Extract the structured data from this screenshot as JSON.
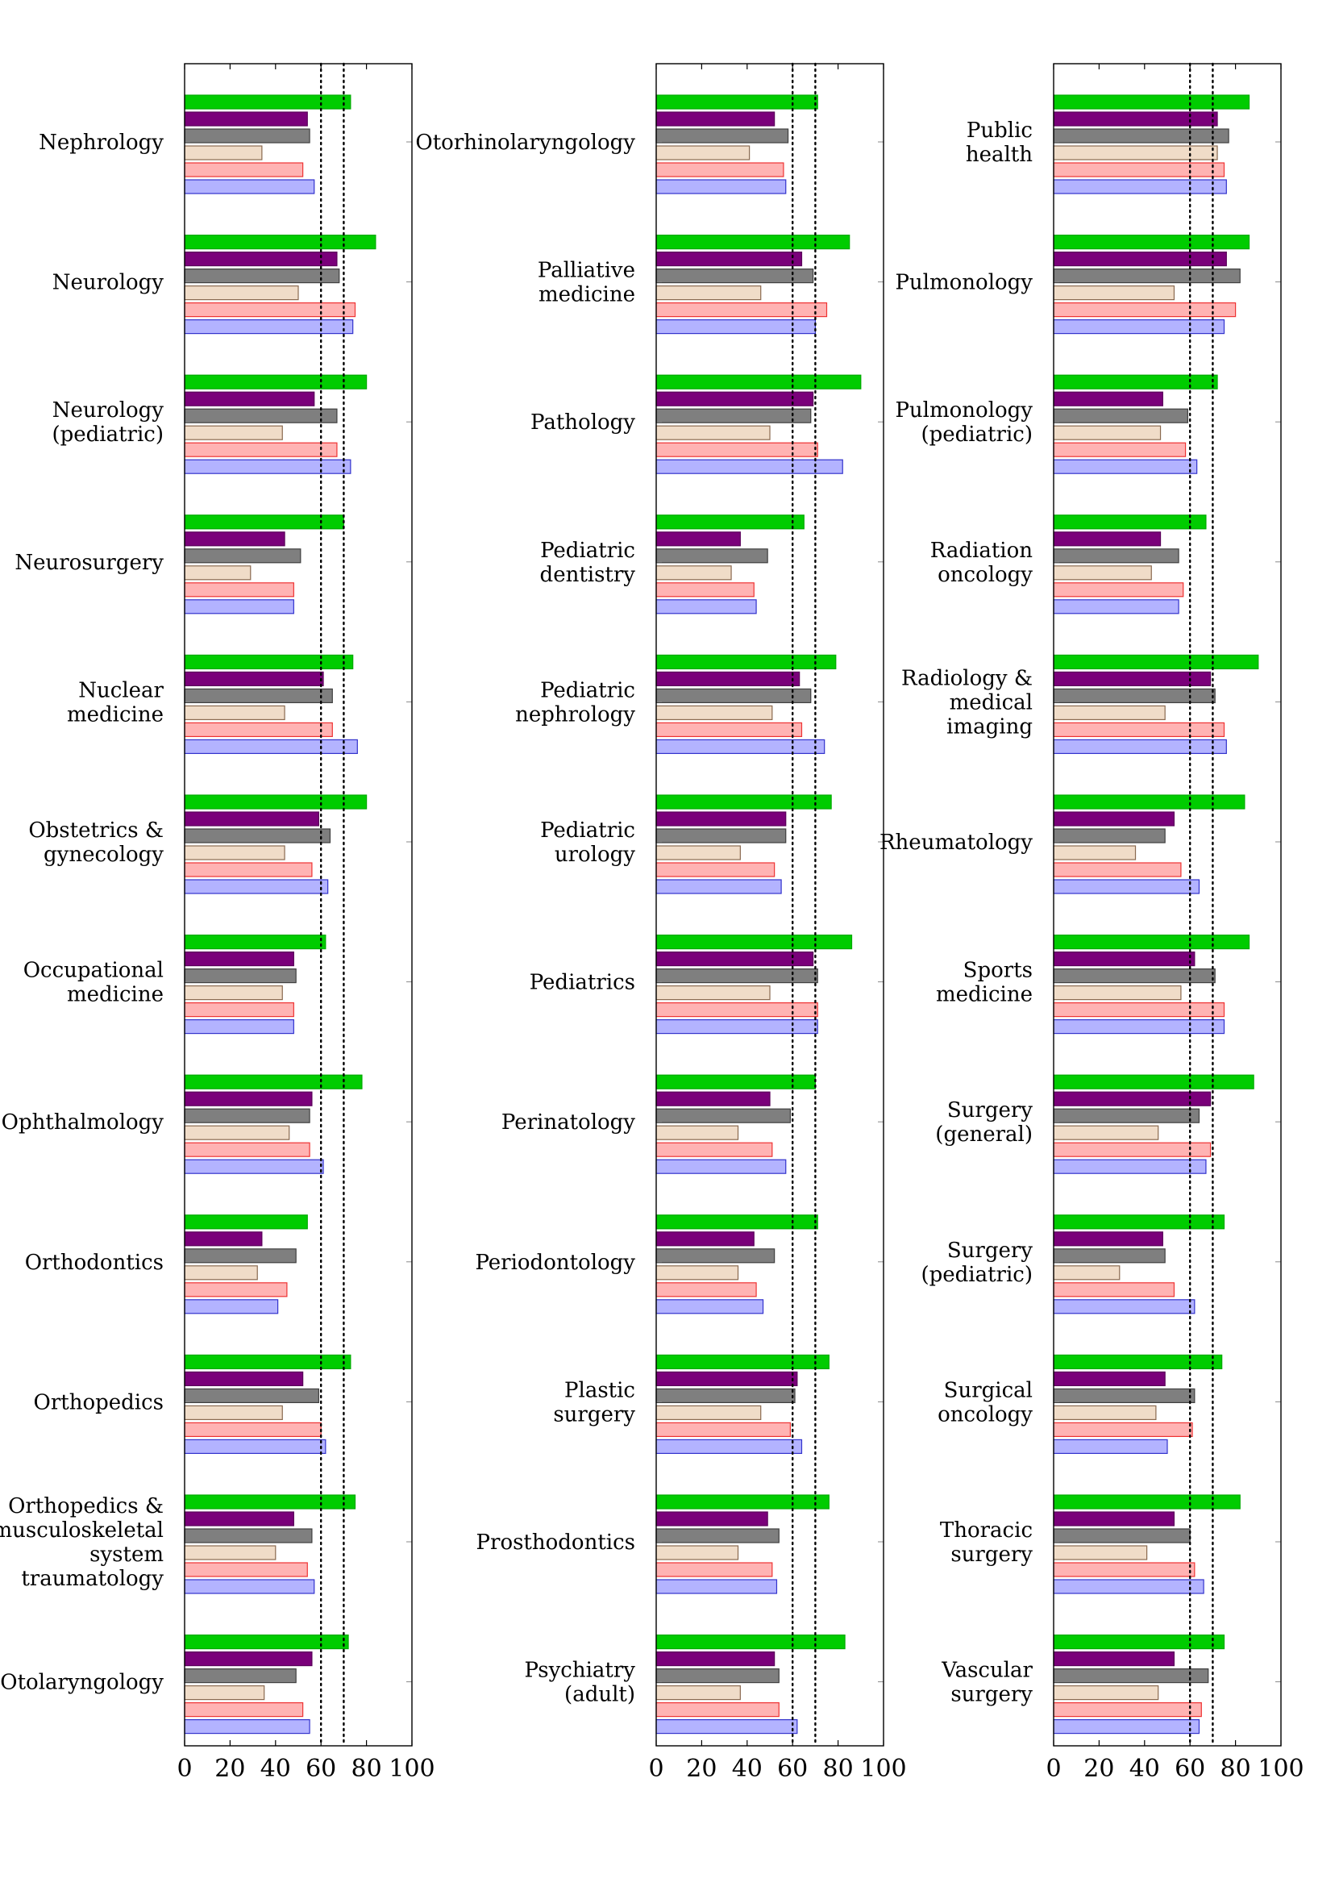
{
  "chart_data": [
    {
      "type": "bar",
      "orientation": "horizontal",
      "xlim": [
        0,
        100
      ],
      "xticks": [
        "0",
        "20",
        "40",
        "60",
        "80",
        "100"
      ],
      "reference_lines": [
        60,
        70
      ],
      "grid": false,
      "categories": [
        [
          "Nephrology"
        ],
        [
          "Neurology"
        ],
        [
          "Neurology",
          "(pediatric)"
        ],
        [
          "Neurosurgery"
        ],
        [
          "Nuclear",
          "medicine"
        ],
        [
          "Obstetrics &",
          "gynecology"
        ],
        [
          "Occupational",
          "medicine"
        ],
        [
          "Ophthalmology"
        ],
        [
          "Orthodontics"
        ],
        [
          "Orthopedics"
        ],
        [
          "Orthopedics &",
          "musculoskeletal",
          "system",
          "traumatology"
        ],
        [
          "Otolaryngology"
        ]
      ],
      "series": [
        {
          "color": "#00cc00",
          "values": [
            73,
            84,
            80,
            70,
            74,
            80,
            62,
            78,
            54,
            73,
            75,
            72
          ]
        },
        {
          "color": "#7a007a",
          "values": [
            54,
            67,
            57,
            44,
            61,
            59,
            48,
            56,
            34,
            52,
            48,
            56
          ]
        },
        {
          "color": "#7f7f7f",
          "values": [
            55,
            68,
            67,
            51,
            65,
            64,
            49,
            55,
            49,
            59,
            56,
            49
          ]
        },
        {
          "color": "#f0dcc8",
          "values": [
            34,
            50,
            43,
            29,
            44,
            44,
            43,
            46,
            32,
            43,
            40,
            35
          ]
        },
        {
          "color": "#ffb3b3",
          "values": [
            52,
            75,
            67,
            48,
            65,
            56,
            48,
            55,
            45,
            60,
            54,
            52
          ]
        },
        {
          "color": "#b3b3ff",
          "values": [
            57,
            74,
            73,
            48,
            76,
            63,
            48,
            61,
            41,
            62,
            57,
            55
          ]
        }
      ]
    },
    {
      "type": "bar",
      "orientation": "horizontal",
      "xlim": [
        0,
        100
      ],
      "xticks": [
        "0",
        "20",
        "40",
        "60",
        "80",
        "100"
      ],
      "reference_lines": [
        60,
        70
      ],
      "grid": false,
      "categories": [
        [
          "Otorhinolaryngology"
        ],
        [
          "Palliative",
          "medicine"
        ],
        [
          "Pathology"
        ],
        [
          "Pediatric",
          "dentistry"
        ],
        [
          "Pediatric",
          "nephrology"
        ],
        [
          "Pediatric",
          "urology"
        ],
        [
          "Pediatrics"
        ],
        [
          "Perinatology"
        ],
        [
          "Periodontology"
        ],
        [
          "Plastic",
          "surgery"
        ],
        [
          "Prosthodontics"
        ],
        [
          "Psychiatry",
          "(adult)"
        ]
      ],
      "series": [
        {
          "color": "#00cc00",
          "values": [
            71,
            85,
            90,
            65,
            79,
            77,
            86,
            70,
            71,
            76,
            76,
            83
          ]
        },
        {
          "color": "#7a007a",
          "values": [
            52,
            64,
            69,
            37,
            63,
            57,
            69,
            50,
            43,
            62,
            49,
            52
          ]
        },
        {
          "color": "#7f7f7f",
          "values": [
            58,
            69,
            68,
            49,
            68,
            57,
            71,
            59,
            52,
            61,
            54,
            54
          ]
        },
        {
          "color": "#f0dcc8",
          "values": [
            41,
            46,
            50,
            33,
            51,
            37,
            50,
            36,
            36,
            46,
            36,
            37
          ]
        },
        {
          "color": "#ffb3b3",
          "values": [
            56,
            75,
            71,
            43,
            64,
            52,
            71,
            51,
            44,
            59,
            51,
            54
          ]
        },
        {
          "color": "#b3b3ff",
          "values": [
            57,
            70,
            82,
            44,
            74,
            55,
            71,
            57,
            47,
            64,
            53,
            62
          ]
        }
      ]
    },
    {
      "type": "bar",
      "orientation": "horizontal",
      "xlim": [
        0,
        100
      ],
      "xticks": [
        "0",
        "20",
        "40",
        "60",
        "80",
        "100"
      ],
      "reference_lines": [
        60,
        70
      ],
      "grid": false,
      "categories": [
        [
          "Public",
          "health"
        ],
        [
          "Pulmonology"
        ],
        [
          "Pulmonology",
          "(pediatric)"
        ],
        [
          "Radiation",
          "oncology"
        ],
        [
          "Radiology &",
          "medical",
          "imaging"
        ],
        [
          "Rheumatology"
        ],
        [
          "Sports",
          "medicine"
        ],
        [
          "Surgery",
          "(general)"
        ],
        [
          "Surgery",
          "(pediatric)"
        ],
        [
          "Surgical",
          "oncology"
        ],
        [
          "Thoracic",
          "surgery"
        ],
        [
          "Vascular",
          "surgery"
        ]
      ],
      "series": [
        {
          "color": "#00cc00",
          "values": [
            86,
            86,
            72,
            67,
            90,
            84,
            86,
            88,
            75,
            74,
            82,
            75
          ]
        },
        {
          "color": "#7a007a",
          "values": [
            72,
            76,
            48,
            47,
            69,
            53,
            62,
            69,
            48,
            49,
            53,
            53
          ]
        },
        {
          "color": "#7f7f7f",
          "values": [
            77,
            82,
            59,
            55,
            71,
            49,
            71,
            64,
            49,
            62,
            60,
            68
          ]
        },
        {
          "color": "#f0dcc8",
          "values": [
            72,
            53,
            47,
            43,
            49,
            36,
            56,
            46,
            29,
            45,
            41,
            46
          ]
        },
        {
          "color": "#ffb3b3",
          "values": [
            75,
            80,
            58,
            57,
            75,
            56,
            75,
            69,
            53,
            61,
            62,
            65
          ]
        },
        {
          "color": "#b3b3ff",
          "values": [
            76,
            75,
            63,
            55,
            76,
            64,
            75,
            67,
            62,
            50,
            66,
            64
          ]
        }
      ]
    }
  ]
}
